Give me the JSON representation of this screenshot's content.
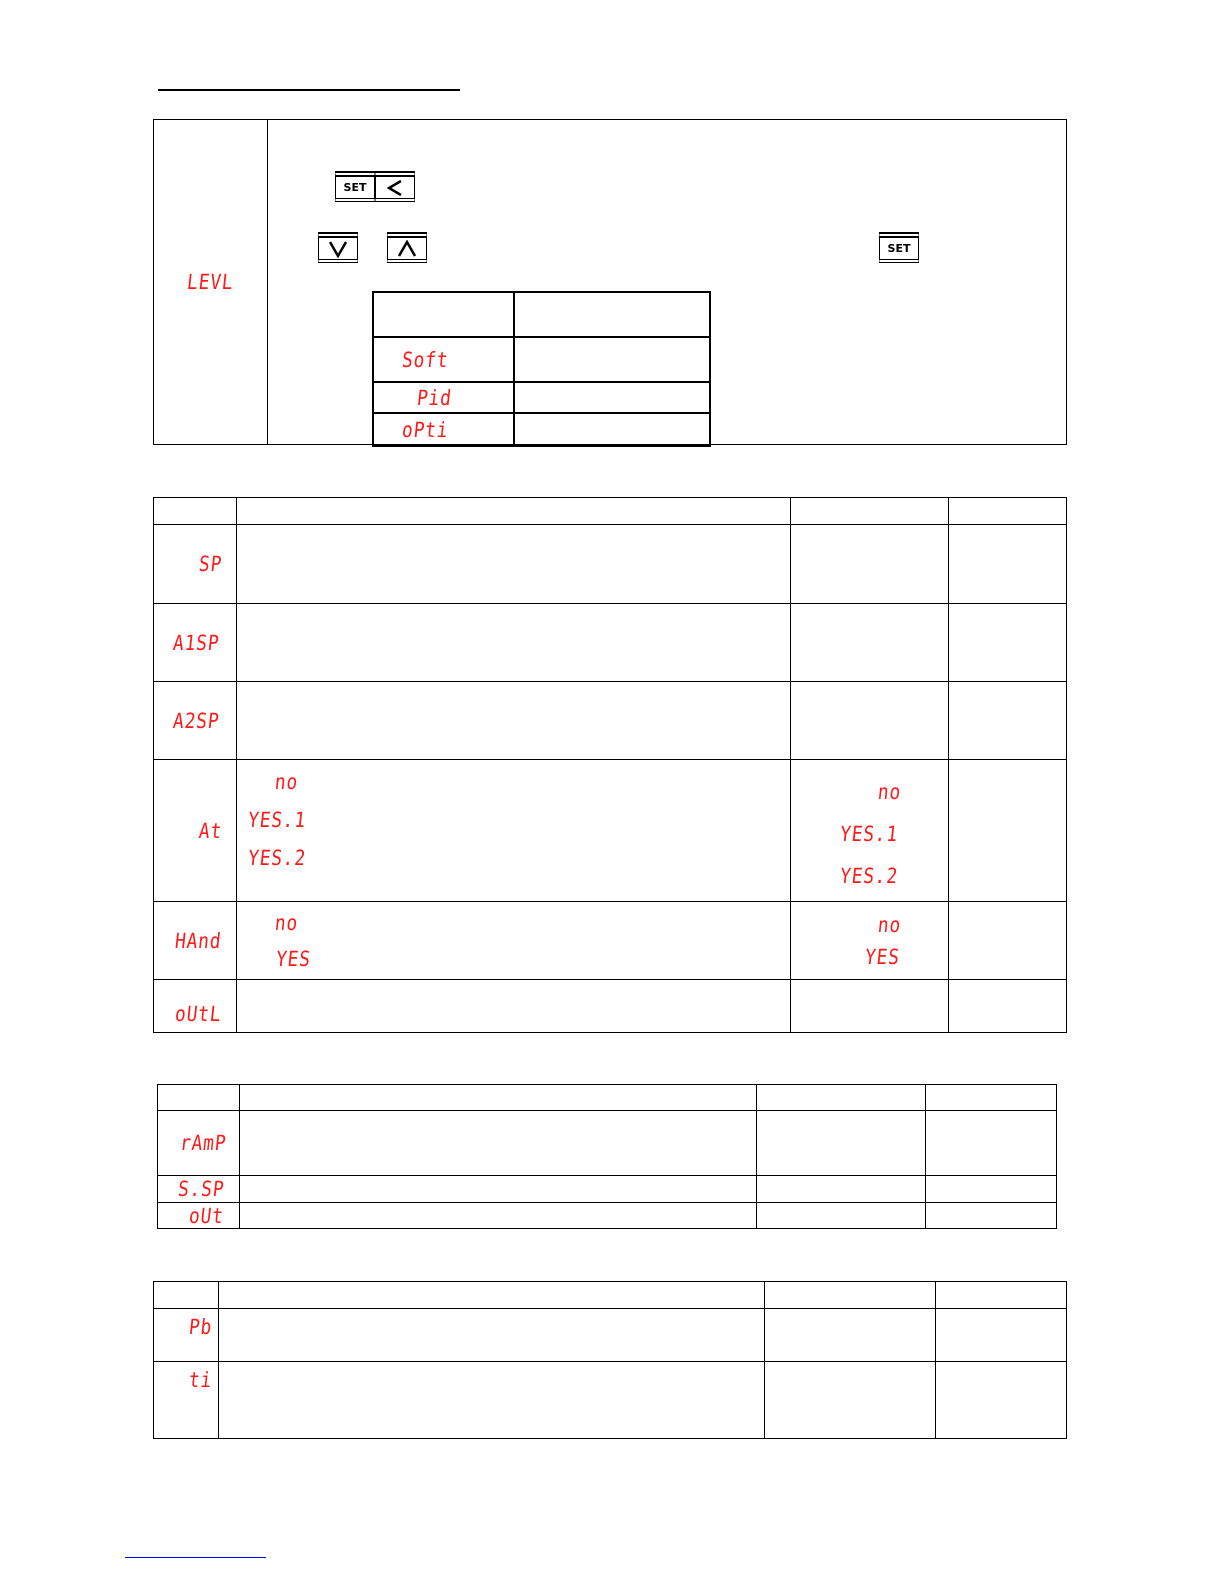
{
  "level_section": {
    "param": "LEVL",
    "keys": {
      "combo": [
        "SET",
        "<"
      ],
      "down": "down-arrow",
      "up": "up-arrow",
      "confirm": "SET"
    },
    "options": [
      "Soft",
      "Pid",
      "oPti"
    ]
  },
  "table_main": {
    "rows": [
      {
        "param": "SP"
      },
      {
        "param": "A1SP"
      },
      {
        "param": "A2SP"
      },
      {
        "param": "At",
        "choices": [
          "no",
          "YES.1",
          "YES.2"
        ],
        "values": [
          "no",
          "YES.1",
          "YES.2"
        ]
      },
      {
        "param": "HAnd",
        "choices": [
          "no",
          "YES"
        ],
        "values": [
          "no",
          "YES"
        ]
      },
      {
        "param": "oUtL"
      }
    ]
  },
  "table_soft": {
    "rows": [
      {
        "param": "rAmP"
      },
      {
        "param": "S.SP"
      },
      {
        "param": "oUt"
      }
    ]
  },
  "table_pid": {
    "rows": [
      {
        "param": "Pb"
      },
      {
        "param": "ti"
      }
    ]
  },
  "colors": {
    "display_red": "#ff1a1a",
    "link_blue": "#0000ff"
  }
}
